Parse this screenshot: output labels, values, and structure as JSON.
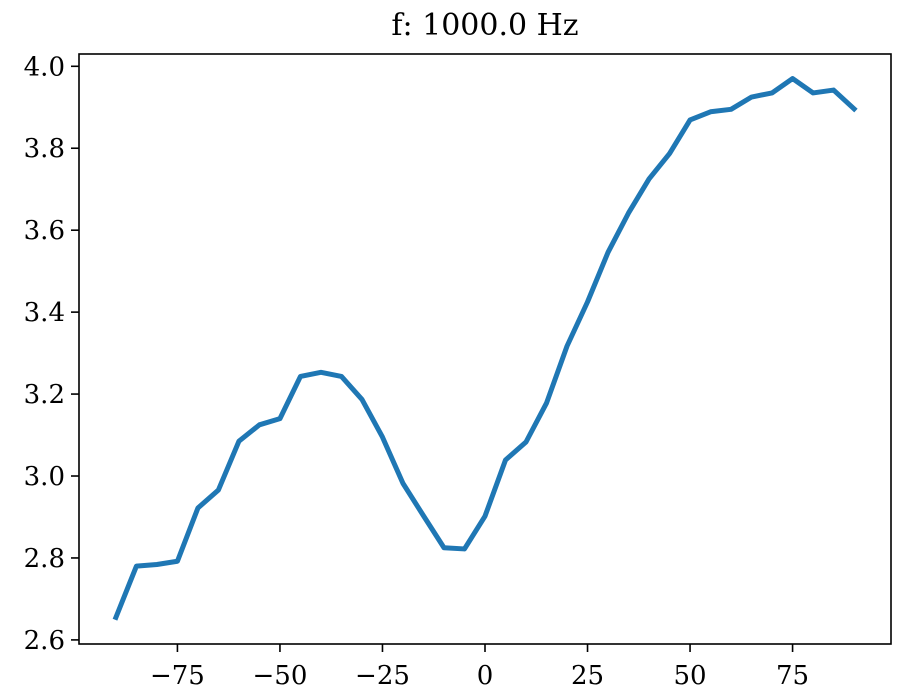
{
  "chart_data": {
    "type": "line",
    "title": "f: 1000.0 Hz",
    "xlabel": "",
    "ylabel": "",
    "xlim": [
      -99,
      99
    ],
    "ylim": [
      2.59,
      4.03
    ],
    "grid": false,
    "x_ticks": [
      -75,
      -50,
      -25,
      0,
      25,
      50,
      75
    ],
    "x_tick_labels": [
      "−75",
      "−50",
      "−25",
      "0",
      "25",
      "50",
      "75"
    ],
    "y_ticks": [
      2.6,
      2.8,
      3.0,
      3.2,
      3.4,
      3.6,
      3.8,
      4.0
    ],
    "y_tick_labels": [
      "2.6",
      "2.8",
      "3.0",
      "3.2",
      "3.4",
      "3.6",
      "3.8",
      "4.0"
    ],
    "series": [
      {
        "color": "#1f77b4",
        "x": [
          -90,
          -85,
          -80,
          -75,
          -70,
          -65,
          -60,
          -55,
          -50,
          -45,
          -40,
          -35,
          -30,
          -25,
          -20,
          -15,
          -10,
          -5,
          0,
          5,
          10,
          15,
          20,
          25,
          30,
          35,
          40,
          45,
          50,
          55,
          60,
          65,
          70,
          75,
          80,
          85,
          90
        ],
        "y": [
          2.655,
          2.78,
          2.784,
          2.792,
          2.922,
          2.966,
          3.085,
          3.125,
          3.14,
          3.243,
          3.253,
          3.243,
          3.187,
          3.095,
          2.982,
          2.903,
          2.825,
          2.822,
          2.902,
          3.039,
          3.083,
          3.178,
          3.317,
          3.425,
          3.546,
          3.642,
          3.725,
          3.787,
          3.869,
          3.889,
          3.895,
          3.925,
          3.935,
          3.97,
          3.935,
          3.942,
          3.896
        ]
      }
    ]
  }
}
